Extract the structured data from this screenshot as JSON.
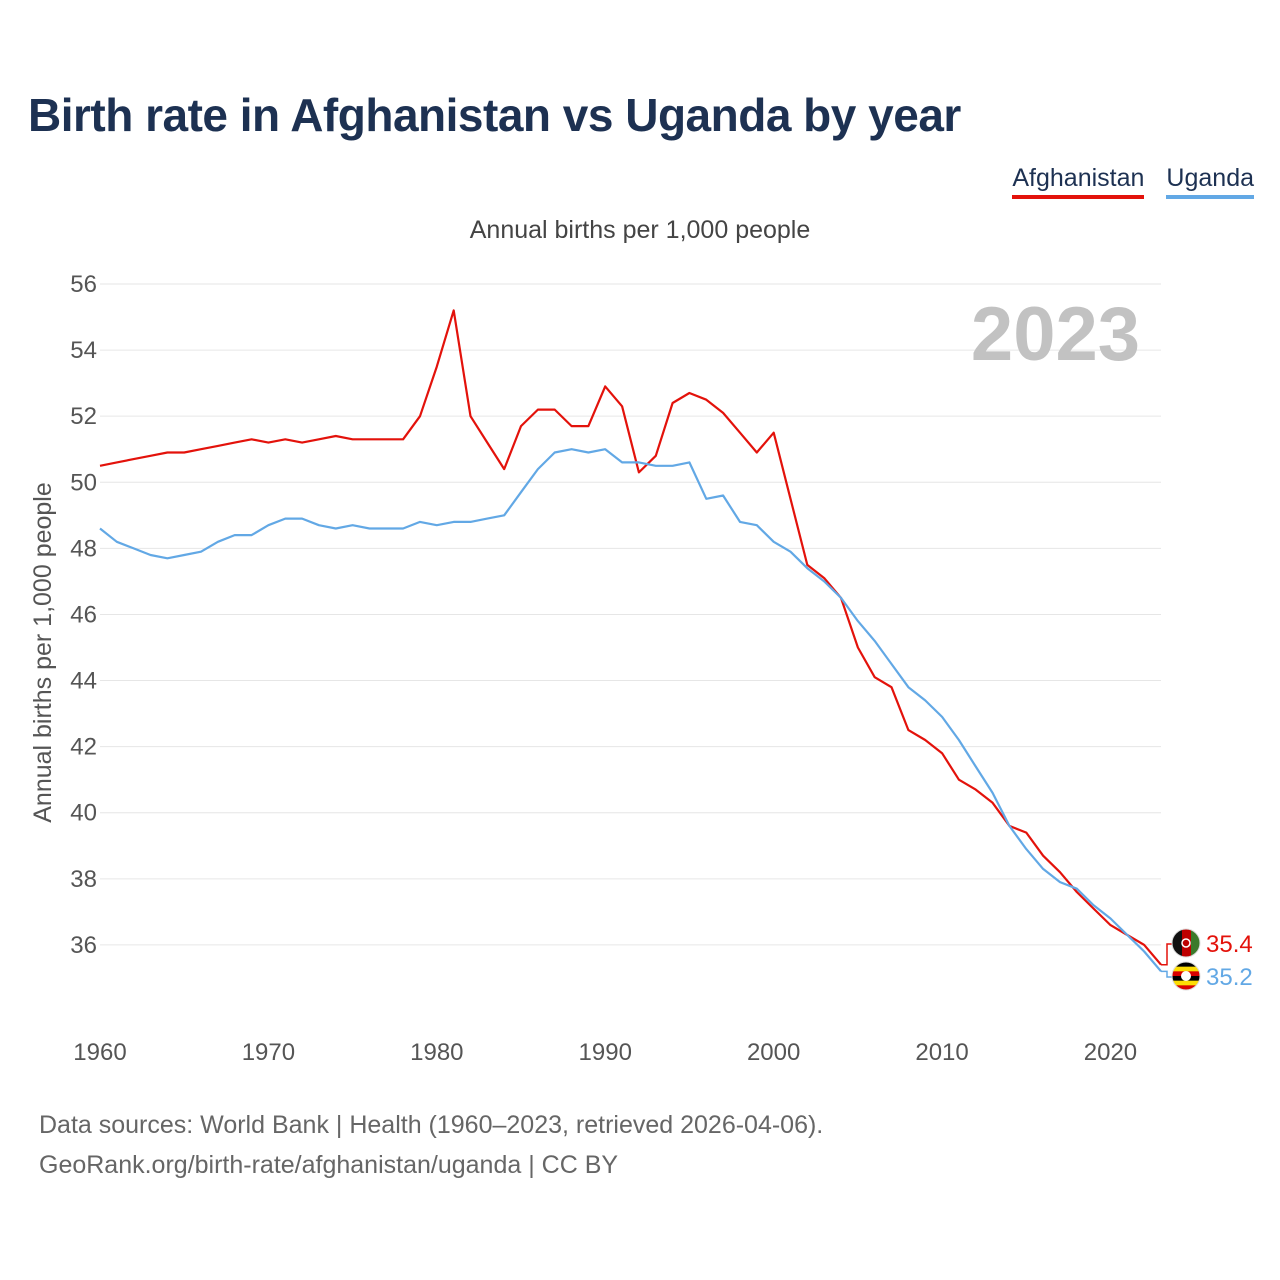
{
  "title": "Birth rate in Afghanistan vs Uganda by year",
  "subtitle": "Annual births per 1,000 people",
  "year_label": "2023",
  "legend": [
    {
      "name": "Afghanistan",
      "color": "#e3120b"
    },
    {
      "name": "Uganda",
      "color": "#62a8e5"
    }
  ],
  "footer": {
    "line1": "Data sources: World Bank | Health (1960–2023, retrieved 2026-04-06).",
    "line2": "GeoRank.org/birth-rate/afghanistan/uganda | CC BY"
  },
  "chart_data": {
    "type": "line",
    "title": "Birth rate in Afghanistan vs Uganda by year",
    "ylabel": "Annual births per 1,000 people",
    "xlabel": "",
    "xlim": [
      1960,
      2023
    ],
    "ylim": [
      34,
      56
    ],
    "xticks": [
      1960,
      1970,
      1980,
      1990,
      2000,
      2010,
      2020
    ],
    "yticks": [
      36,
      38,
      40,
      42,
      44,
      46,
      48,
      50,
      52,
      54,
      56
    ],
    "grid": true,
    "series": [
      {
        "name": "Afghanistan",
        "color": "#e3120b",
        "end_label": "35.4",
        "x": [
          1960,
          1961,
          1962,
          1963,
          1964,
          1965,
          1966,
          1967,
          1968,
          1969,
          1970,
          1971,
          1972,
          1973,
          1974,
          1975,
          1976,
          1977,
          1978,
          1979,
          1980,
          1981,
          1982,
          1983,
          1984,
          1985,
          1986,
          1987,
          1988,
          1989,
          1990,
          1991,
          1992,
          1993,
          1994,
          1995,
          1996,
          1997,
          1998,
          1999,
          2000,
          2001,
          2002,
          2003,
          2004,
          2005,
          2006,
          2007,
          2008,
          2009,
          2010,
          2011,
          2012,
          2013,
          2014,
          2015,
          2016,
          2017,
          2018,
          2019,
          2020,
          2021,
          2022,
          2023
        ],
        "y": [
          50.5,
          50.6,
          50.7,
          50.8,
          50.9,
          50.9,
          51.0,
          51.1,
          51.2,
          51.3,
          51.2,
          51.3,
          51.2,
          51.3,
          51.4,
          51.3,
          51.3,
          51.3,
          51.3,
          52.0,
          53.5,
          55.2,
          52.0,
          51.2,
          50.4,
          51.7,
          52.2,
          52.2,
          51.7,
          51.7,
          52.9,
          52.3,
          50.3,
          50.8,
          52.4,
          52.7,
          52.5,
          52.1,
          51.5,
          50.9,
          51.5,
          49.5,
          47.5,
          47.1,
          46.5,
          45.0,
          44.1,
          43.8,
          42.5,
          42.2,
          41.8,
          41.0,
          40.7,
          40.3,
          39.6,
          39.4,
          38.7,
          38.2,
          37.6,
          37.1,
          36.6,
          36.3,
          36.0,
          35.4
        ]
      },
      {
        "name": "Uganda",
        "color": "#62a8e5",
        "end_label": "35.2",
        "x": [
          1960,
          1961,
          1962,
          1963,
          1964,
          1965,
          1966,
          1967,
          1968,
          1969,
          1970,
          1971,
          1972,
          1973,
          1974,
          1975,
          1976,
          1977,
          1978,
          1979,
          1980,
          1981,
          1982,
          1983,
          1984,
          1985,
          1986,
          1987,
          1988,
          1989,
          1990,
          1991,
          1992,
          1993,
          1994,
          1995,
          1996,
          1997,
          1998,
          1999,
          2000,
          2001,
          2002,
          2003,
          2004,
          2005,
          2006,
          2007,
          2008,
          2009,
          2010,
          2011,
          2012,
          2013,
          2014,
          2015,
          2016,
          2017,
          2018,
          2019,
          2020,
          2021,
          2022,
          2023
        ],
        "y": [
          48.6,
          48.2,
          48.0,
          47.8,
          47.7,
          47.8,
          47.9,
          48.2,
          48.4,
          48.4,
          48.7,
          48.9,
          48.9,
          48.7,
          48.6,
          48.7,
          48.6,
          48.6,
          48.6,
          48.8,
          48.7,
          48.8,
          48.8,
          48.9,
          49.0,
          49.7,
          50.4,
          50.9,
          51.0,
          50.9,
          51.0,
          50.6,
          50.6,
          50.5,
          50.5,
          50.6,
          49.5,
          49.6,
          48.8,
          48.7,
          48.2,
          47.9,
          47.4,
          47.0,
          46.5,
          45.8,
          45.2,
          44.5,
          43.8,
          43.4,
          42.9,
          42.2,
          41.4,
          40.6,
          39.6,
          38.9,
          38.3,
          37.9,
          37.7,
          37.2,
          36.8,
          36.3,
          35.8,
          35.2
        ]
      }
    ]
  }
}
